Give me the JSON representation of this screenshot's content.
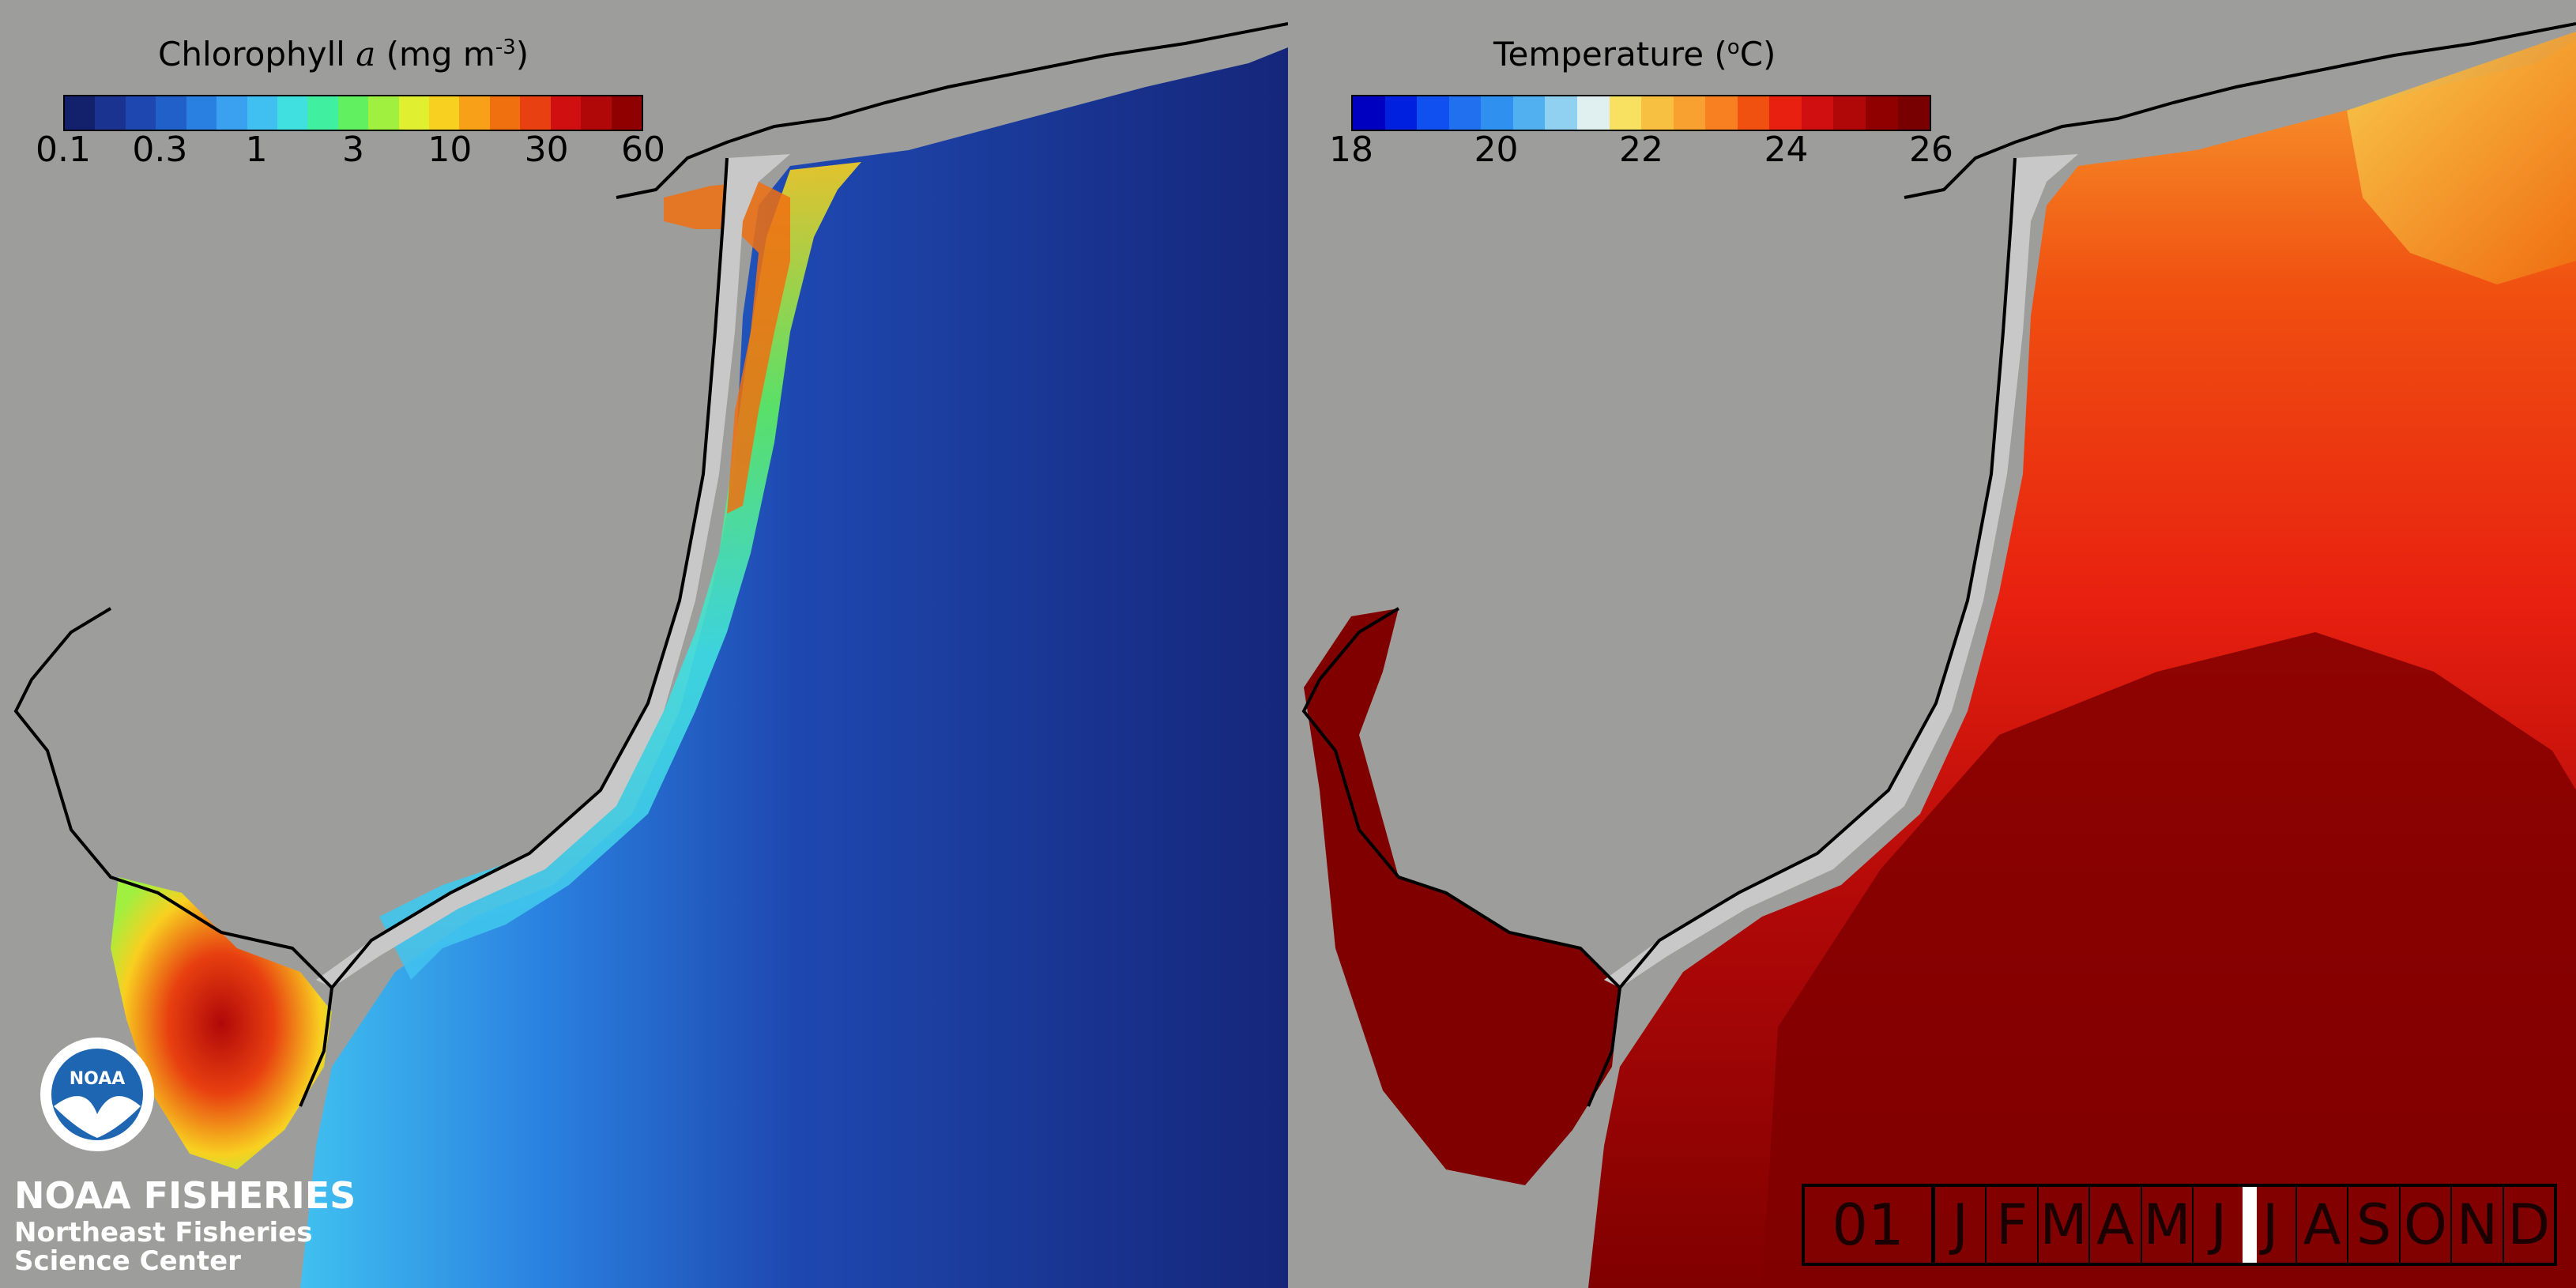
{
  "chlorophyll_panel": {
    "title_prefix": "Chlorophyll ",
    "title_italic": "a",
    "title_unit": " (mg m",
    "title_sup": "-3",
    "title_suffix": ")",
    "ticks": [
      "0.1",
      "0.3",
      "1",
      "3",
      "10",
      "30",
      "60"
    ],
    "colormap": [
      "#13206b",
      "#1a3290",
      "#1e48b0",
      "#2060c8",
      "#2a80e0",
      "#3aa0f0",
      "#40c0f0",
      "#40e0e0",
      "#40f0a0",
      "#60f060",
      "#a0f040",
      "#e0f030",
      "#f8d020",
      "#f8a018",
      "#f07010",
      "#e84010",
      "#d01010",
      "#b00808",
      "#900000"
    ]
  },
  "temperature_panel": {
    "title_prefix": "Temperature (",
    "title_sup": "o",
    "title_suffix": "C)",
    "ticks": [
      "18",
      "20",
      "22",
      "24",
      "26"
    ],
    "colormap": [
      "#0000c0",
      "#0020e0",
      "#1050f0",
      "#2070f0",
      "#3090f0",
      "#50b0f0",
      "#90d0f0",
      "#e0f0f0",
      "#f8e060",
      "#f8c040",
      "#f8a030",
      "#f88020",
      "#f05010",
      "#e82010",
      "#d01010",
      "#b00808",
      "#900000",
      "#780000"
    ]
  },
  "branding": {
    "logo_text": "NOAA",
    "title": "NOAA FISHERIES",
    "subtitle_line1": "Northeast Fisheries",
    "subtitle_line2": "Science Center"
  },
  "timeline": {
    "day": "01",
    "months": [
      "J",
      "F",
      "M",
      "A",
      "M",
      "J",
      "J",
      "A",
      "S",
      "O",
      "N",
      "D"
    ],
    "cursor_fraction": 0.5
  },
  "colors": {
    "land": "#9d9e9c",
    "shelf": "#c8c8c8",
    "coastline": "#000000"
  }
}
